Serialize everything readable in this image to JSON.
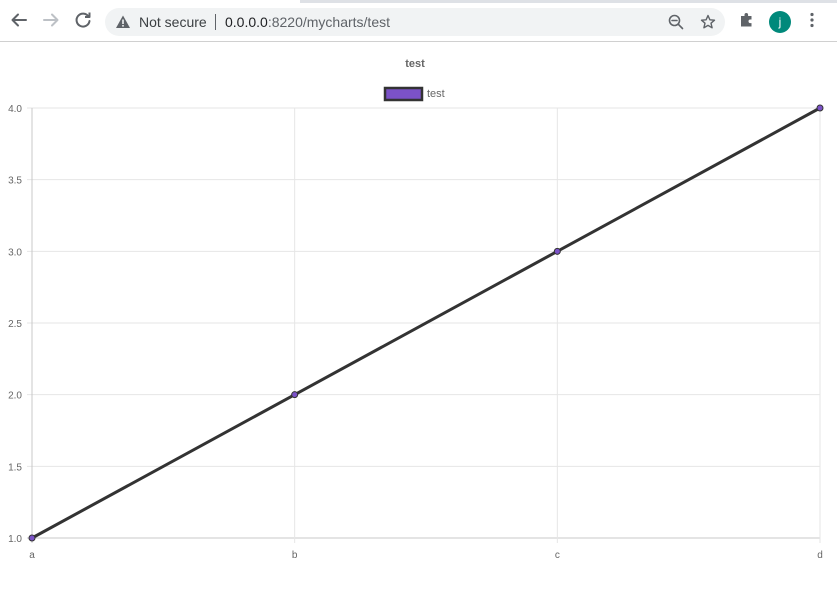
{
  "browser": {
    "security_label": "Not secure",
    "url_host": "0.0.0.0",
    "url_rest": ":8220/mycharts/test",
    "profile_initial": "j",
    "profile_color": "#00897b"
  },
  "chart_data": {
    "type": "line",
    "title": "test",
    "categories": [
      "a",
      "b",
      "c",
      "d"
    ],
    "series": [
      {
        "name": "test",
        "values": [
          1,
          2,
          3,
          4
        ],
        "line_color": "#333333",
        "point_color": "#7b52c8"
      }
    ],
    "ylim": [
      1.0,
      4.0
    ],
    "yticks": [
      "1.0",
      "1.5",
      "2.0",
      "2.5",
      "3.0",
      "3.5",
      "4.0"
    ],
    "grid": true,
    "legend_position": "top"
  }
}
